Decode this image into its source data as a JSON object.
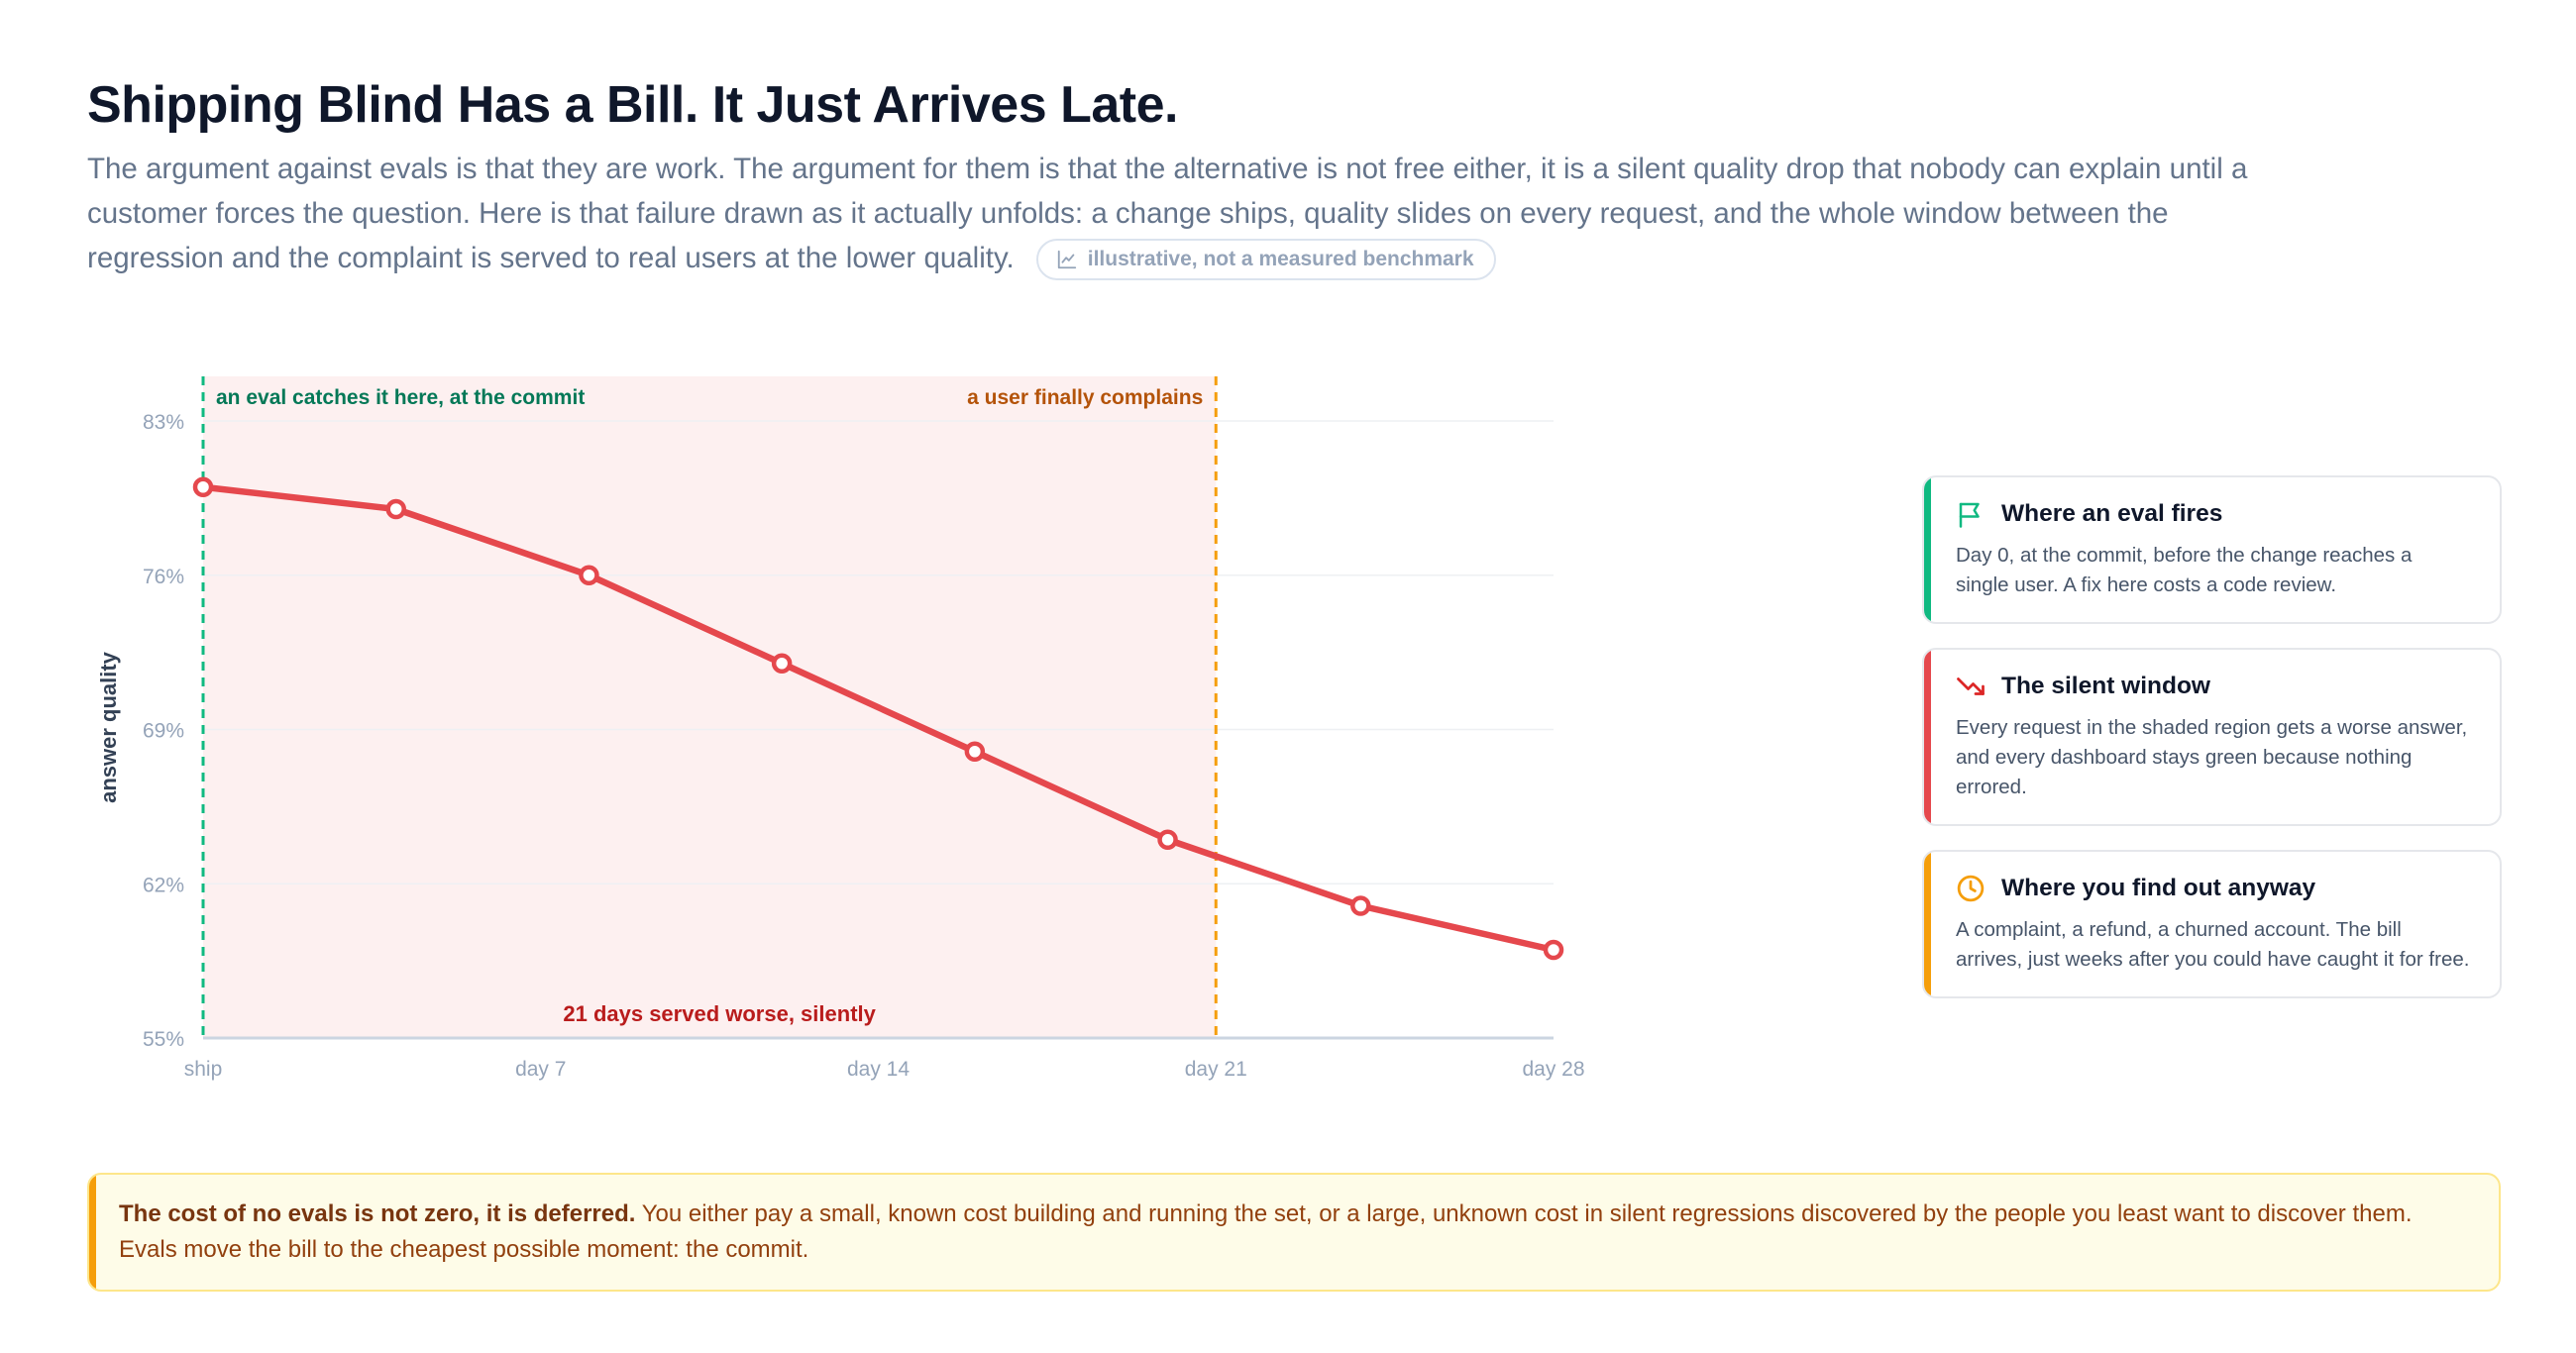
{
  "header": {
    "title": "Shipping Blind Has a Bill. It Just Arrives Late.",
    "lede": "The argument against evals is that they are work. The argument for them is that the alternative is not free either, it is a silent quality drop that nobody can explain until a customer forces the question. Here is that failure drawn as it actually unfolds: a change ships, quality slides on every request, and the whole window between the regression and the complaint is served to real users at the lower quality.",
    "badge": "illustrative, not a measured benchmark",
    "badge_icon": "line-chart-icon"
  },
  "chart_data": {
    "type": "line",
    "ylabel": "answer quality",
    "ylim": [
      55,
      83
    ],
    "yticks": [
      "83%",
      "76%",
      "69%",
      "62%",
      "55%"
    ],
    "ytick_values": [
      83,
      76,
      69,
      62,
      55
    ],
    "xlim": [
      0,
      28
    ],
    "xticks": [
      "ship",
      "day 7",
      "day 14",
      "day 21",
      "day 28"
    ],
    "xtick_values": [
      0,
      7,
      14,
      21,
      28
    ],
    "grid": true,
    "series": [
      {
        "color": "#e5484d",
        "x": [
          0,
          4,
          8,
          12,
          16,
          20,
          24,
          28
        ],
        "y": [
          80,
          79,
          76,
          72,
          68,
          64,
          61,
          59
        ]
      }
    ],
    "shaded_region": {
      "x_start": 0,
      "x_end": 21,
      "color": "#fdf0f0",
      "label": "21 days served worse, silently",
      "label_color": "#b91c1c"
    },
    "markers": [
      {
        "x": 0,
        "label": "an eval catches it here, at the commit",
        "color": "#10b981",
        "label_color": "#047857"
      },
      {
        "x": 21,
        "label": "a user finally complains",
        "color": "#f59e0b",
        "label_color": "#b45309"
      }
    ]
  },
  "cards": [
    {
      "title": "Where an eval fires",
      "body": "Day 0, at the commit, before the change reaches a single user. A fix here costs a code review.",
      "color": "#10b981",
      "icon": "flag-icon"
    },
    {
      "title": "The silent window",
      "body": "Every request in the shaded region gets a worse answer, and every dashboard stays green because nothing errored.",
      "color": "#e5484d",
      "icon": "trending-down-icon"
    },
    {
      "title": "Where you find out anyway",
      "body": "A complaint, a refund, a churned account. The bill arrives, just weeks after you could have caught it for free.",
      "color": "#f59e0b",
      "icon": "clock-icon"
    }
  ],
  "callout": {
    "lead": "The cost of no evals is not zero, it is deferred.",
    "body": "You either pay a small, known cost building and running the set, or a large, unknown cost in silent regressions discovered by the people you least want to discover them. Evals move the bill to the cheapest possible moment: the commit.",
    "color": "#f59e0b"
  }
}
